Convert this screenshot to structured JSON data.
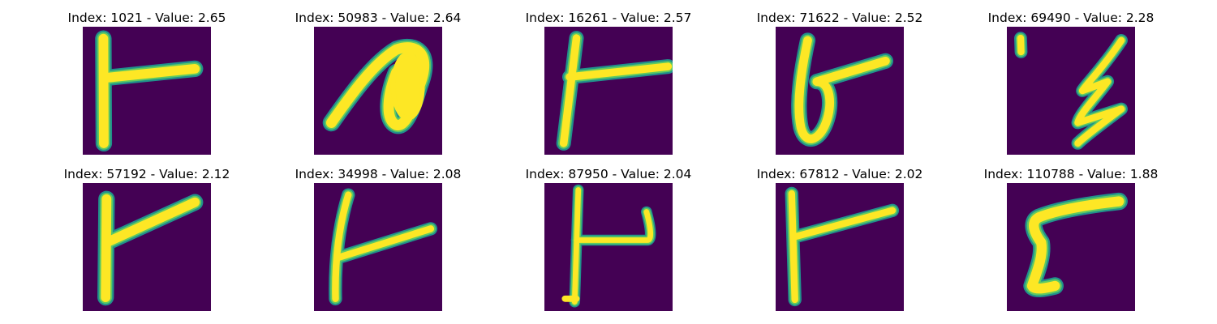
{
  "figure": {
    "panels": [
      {
        "title": "Index: 1021 - Value: 2.65"
      },
      {
        "title": "Index: 50983 - Value: 2.64"
      },
      {
        "title": "Index: 16261 - Value: 2.57"
      },
      {
        "title": "Index: 71622 - Value: 2.52"
      },
      {
        "title": "Index: 69490 - Value: 2.28"
      },
      {
        "title": "Index: 57192 - Value: 2.12"
      },
      {
        "title": "Index: 34998 - Value: 2.08"
      },
      {
        "title": "Index: 87950 - Value: 2.04"
      },
      {
        "title": "Index: 67812 - Value: 2.02"
      },
      {
        "title": "Index: 110788 - Value: 1.88"
      }
    ],
    "colors": {
      "background": "#440154",
      "stroke_edge": "#21918c",
      "stroke_mid": "#5ec962",
      "stroke_core": "#fde725"
    }
  }
}
